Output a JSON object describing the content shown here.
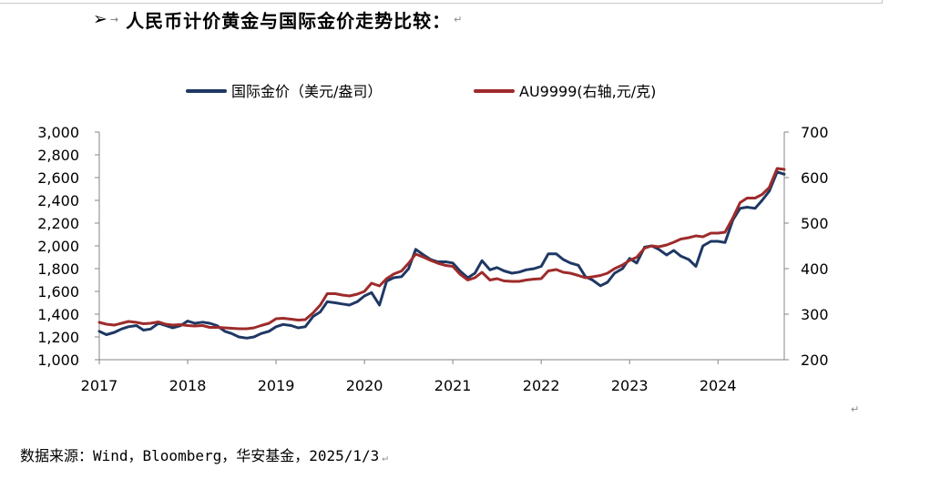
{
  "heading": {
    "bullet": "➢",
    "tab_mark": "→",
    "text": "人民币计价黄金与国际金价走势比较：",
    "para_mark": "↵"
  },
  "source": {
    "text": "数据来源：Wind，Bloomberg，华安基金，2025/1/3",
    "para_mark": "↵"
  },
  "stray_mark": "↵",
  "colors": {
    "international": "#1f3864",
    "au9999": "#9e2b2b",
    "axis": "#868686"
  },
  "chart_data": {
    "type": "line",
    "title": "",
    "xlabel": "",
    "ylabel": "",
    "x_ticks": [
      "2017",
      "2018",
      "2019",
      "2020",
      "2021",
      "2022",
      "2023",
      "2024"
    ],
    "x_range": [
      2017.0,
      2024.75
    ],
    "y_left": {
      "range": [
        1000,
        3000
      ],
      "ticks": [
        "1,000",
        "1,200",
        "1,400",
        "1,600",
        "1,800",
        "2,000",
        "2,200",
        "2,400",
        "2,600",
        "2,800",
        "3,000"
      ],
      "tick_values": [
        1000,
        1200,
        1400,
        1600,
        1800,
        2000,
        2200,
        2400,
        2600,
        2800,
        3000
      ]
    },
    "y_right": {
      "range": [
        200,
        700
      ],
      "ticks": [
        "200",
        "300",
        "400",
        "500",
        "600",
        "700"
      ],
      "tick_values": [
        200,
        300,
        400,
        500,
        600,
        700
      ]
    },
    "legend_position": "top-center",
    "series": [
      {
        "name": "国际金价（美元/盎司）",
        "axis": "left",
        "color": "#1f3864",
        "x": [
          2017.0,
          2017.08,
          2017.17,
          2017.25,
          2017.33,
          2017.42,
          2017.5,
          2017.58,
          2017.67,
          2017.75,
          2017.83,
          2017.92,
          2018.0,
          2018.08,
          2018.17,
          2018.25,
          2018.33,
          2018.42,
          2018.5,
          2018.58,
          2018.67,
          2018.75,
          2018.83,
          2018.92,
          2019.0,
          2019.08,
          2019.17,
          2019.25,
          2019.33,
          2019.42,
          2019.5,
          2019.58,
          2019.67,
          2019.75,
          2019.83,
          2019.92,
          2020.0,
          2020.08,
          2020.17,
          2020.25,
          2020.33,
          2020.42,
          2020.5,
          2020.58,
          2020.67,
          2020.75,
          2020.83,
          2020.92,
          2021.0,
          2021.08,
          2021.17,
          2021.25,
          2021.33,
          2021.42,
          2021.5,
          2021.58,
          2021.67,
          2021.75,
          2021.83,
          2021.92,
          2022.0,
          2022.08,
          2022.17,
          2022.25,
          2022.33,
          2022.42,
          2022.5,
          2022.58,
          2022.67,
          2022.75,
          2022.83,
          2022.92,
          2023.0,
          2023.08,
          2023.17,
          2023.25,
          2023.33,
          2023.42,
          2023.5,
          2023.58,
          2023.67,
          2023.75,
          2023.83,
          2023.92,
          2024.0,
          2024.08,
          2024.17,
          2024.25,
          2024.33,
          2024.42,
          2024.5,
          2024.58,
          2024.67,
          2024.75
        ],
        "values": [
          1250,
          1220,
          1240,
          1270,
          1290,
          1300,
          1260,
          1270,
          1320,
          1300,
          1280,
          1300,
          1340,
          1320,
          1330,
          1320,
          1300,
          1250,
          1230,
          1200,
          1190,
          1200,
          1230,
          1250,
          1290,
          1310,
          1300,
          1280,
          1290,
          1380,
          1420,
          1510,
          1500,
          1490,
          1480,
          1510,
          1560,
          1590,
          1480,
          1690,
          1720,
          1730,
          1800,
          1970,
          1920,
          1880,
          1860,
          1860,
          1850,
          1780,
          1720,
          1760,
          1870,
          1790,
          1810,
          1780,
          1760,
          1770,
          1790,
          1800,
          1820,
          1930,
          1930,
          1880,
          1850,
          1830,
          1730,
          1700,
          1650,
          1680,
          1760,
          1800,
          1890,
          1850,
          1990,
          2000,
          1970,
          1920,
          1960,
          1910,
          1880,
          1820,
          2000,
          2040,
          2040,
          2030,
          2230,
          2330,
          2340,
          2330,
          2400,
          2480,
          2650,
          2630
        ]
      },
      {
        "name": "AU9999(右轴,元/克)",
        "axis": "right",
        "color": "#9e2b2b",
        "x": [
          2017.0,
          2017.08,
          2017.17,
          2017.25,
          2017.33,
          2017.42,
          2017.5,
          2017.58,
          2017.67,
          2017.75,
          2017.83,
          2017.92,
          2018.0,
          2018.08,
          2018.17,
          2018.25,
          2018.33,
          2018.42,
          2018.5,
          2018.58,
          2018.67,
          2018.75,
          2018.83,
          2018.92,
          2019.0,
          2019.08,
          2019.17,
          2019.25,
          2019.33,
          2019.42,
          2019.5,
          2019.58,
          2019.67,
          2019.75,
          2019.83,
          2019.92,
          2020.0,
          2020.08,
          2020.17,
          2020.25,
          2020.33,
          2020.42,
          2020.5,
          2020.58,
          2020.67,
          2020.75,
          2020.83,
          2020.92,
          2021.0,
          2021.08,
          2021.17,
          2021.25,
          2021.33,
          2021.42,
          2021.5,
          2021.58,
          2021.67,
          2021.75,
          2021.83,
          2021.92,
          2022.0,
          2022.08,
          2022.17,
          2022.25,
          2022.33,
          2022.42,
          2022.5,
          2022.58,
          2022.67,
          2022.75,
          2022.83,
          2022.92,
          2023.0,
          2023.08,
          2023.17,
          2023.25,
          2023.33,
          2023.42,
          2023.5,
          2023.58,
          2023.67,
          2023.75,
          2023.83,
          2023.92,
          2024.0,
          2024.08,
          2024.17,
          2024.25,
          2024.33,
          2024.42,
          2024.5,
          2024.58,
          2024.67,
          2024.75
        ],
        "values": [
          282,
          278,
          276,
          280,
          284,
          282,
          279,
          280,
          283,
          278,
          276,
          277,
          275,
          274,
          275,
          271,
          271,
          270,
          269,
          268,
          268,
          270,
          275,
          280,
          290,
          291,
          289,
          287,
          288,
          303,
          320,
          345,
          345,
          342,
          340,
          344,
          350,
          368,
          362,
          378,
          388,
          395,
          412,
          432,
          425,
          418,
          412,
          407,
          405,
          388,
          375,
          380,
          392,
          375,
          378,
          373,
          372,
          372,
          375,
          377,
          378,
          395,
          398,
          392,
          390,
          385,
          380,
          382,
          385,
          390,
          400,
          408,
          418,
          425,
          445,
          450,
          448,
          452,
          458,
          465,
          468,
          472,
          470,
          478,
          478,
          480,
          512,
          545,
          555,
          555,
          563,
          578,
          620,
          618
        ]
      }
    ]
  }
}
